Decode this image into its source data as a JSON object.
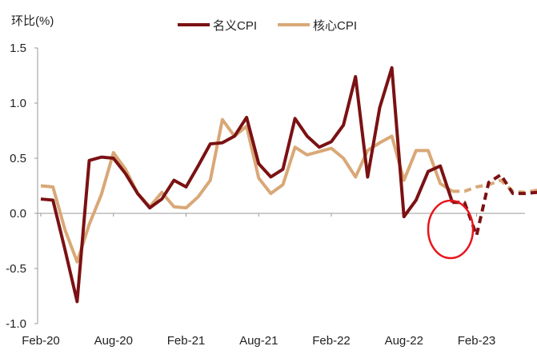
{
  "chart_data": {
    "type": "line",
    "ylabel": "环比(%)",
    "ylim": [
      -1.0,
      1.5
    ],
    "yticks": [
      "1.5",
      "1.0",
      "0.5",
      "0.0",
      "-0.5",
      "-1.0"
    ],
    "yticks_values": [
      1.5,
      1.0,
      0.5,
      0.0,
      -0.5,
      -1.0
    ],
    "xticks": [
      "Feb-20",
      "Aug-20",
      "Feb-21",
      "Aug-21",
      "Feb-22",
      "Aug-22",
      "Feb-23"
    ],
    "xticks_index": [
      0,
      6,
      12,
      18,
      24,
      30,
      36
    ],
    "x": [
      "Feb-20",
      "Mar-20",
      "Apr-20",
      "May-20",
      "Jun-20",
      "Jul-20",
      "Aug-20",
      "Sep-20",
      "Oct-20",
      "Nov-20",
      "Dec-20",
      "Jan-21",
      "Feb-21",
      "Mar-21",
      "Apr-21",
      "May-21",
      "Jun-21",
      "Jul-21",
      "Aug-21",
      "Sep-21",
      "Oct-21",
      "Nov-21",
      "Dec-21",
      "Jan-22",
      "Feb-22",
      "Mar-22",
      "Apr-22",
      "May-22",
      "Jun-22",
      "Jul-22",
      "Aug-22",
      "Sep-22",
      "Oct-22",
      "Nov-22",
      "Dec-22",
      "Jan-23",
      "Feb-23",
      "Mar-23",
      "Apr-23",
      "May-23",
      "Jun-23"
    ],
    "legend_position": "top",
    "colors": {
      "headline": "#7b1113",
      "core": "#d9a877",
      "highlight": "#e8141c",
      "negative_tick": "#c00000"
    },
    "series": [
      {
        "name": "名义CPI",
        "actual_values": [
          0.13,
          0.12,
          -0.33,
          -0.8,
          0.48,
          0.51,
          0.5,
          0.36,
          0.18,
          0.05,
          0.13,
          0.3,
          0.24,
          0.43,
          0.63,
          0.64,
          0.7,
          0.87,
          0.45,
          0.33,
          0.4,
          0.86,
          0.7,
          0.6,
          0.65,
          0.8,
          1.24,
          0.33,
          0.96,
          1.32,
          -0.03,
          0.12,
          0.38,
          0.43,
          0.1
        ],
        "forecast_values": [
          0.1,
          -0.2,
          0.28,
          0.35,
          0.18,
          0.18,
          0.19
        ]
      },
      {
        "name": "核心CPI",
        "actual_values": [
          0.25,
          0.24,
          -0.15,
          -0.44,
          -0.1,
          0.17,
          0.55,
          0.4,
          0.18,
          0.06,
          0.19,
          0.06,
          0.05,
          0.15,
          0.3,
          0.85,
          0.7,
          0.79,
          0.32,
          0.18,
          0.26,
          0.6,
          0.53,
          0.56,
          0.59,
          0.5,
          0.33,
          0.57,
          0.64,
          0.7,
          0.3,
          0.57,
          0.57,
          0.27,
          0.2
        ],
        "forecast_values": [
          0.2,
          0.24,
          0.26,
          0.3,
          0.2,
          0.19,
          0.21
        ]
      }
    ]
  }
}
